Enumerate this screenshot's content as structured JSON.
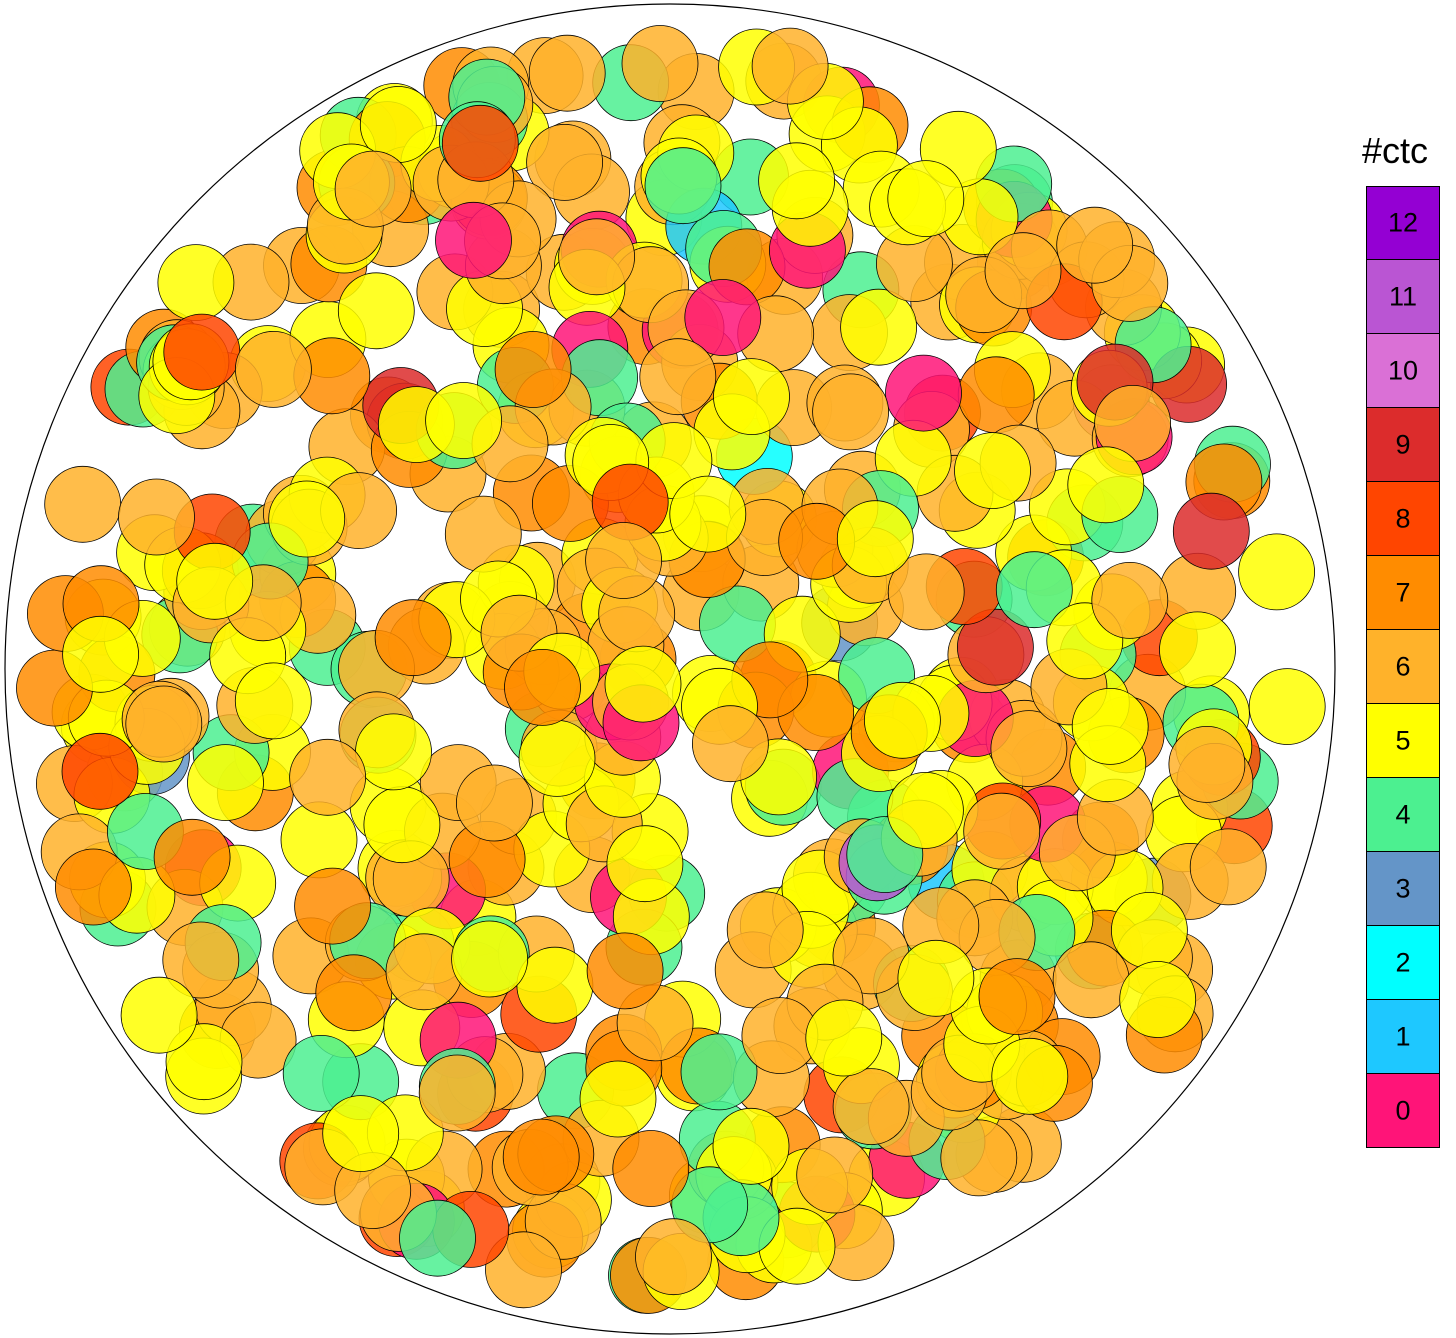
{
  "legend": {
    "title": "#ctc",
    "entries": [
      {
        "label": "12",
        "color": "#9400D3"
      },
      {
        "label": "11",
        "color": "#BA55D3"
      },
      {
        "label": "10",
        "color": "#DA70D6"
      },
      {
        "label": "9",
        "color": "#DC2C2C"
      },
      {
        "label": "8",
        "color": "#FF4500"
      },
      {
        "label": "7",
        "color": "#FF8C00"
      },
      {
        "label": "6",
        "color": "#FFB22A"
      },
      {
        "label": "5",
        "color": "#FFFF00"
      },
      {
        "label": "4",
        "color": "#4CF090"
      },
      {
        "label": "3",
        "color": "#6495C8"
      },
      {
        "label": "2",
        "color": "#00FFFF"
      },
      {
        "label": "1",
        "color": "#1EC8FF"
      },
      {
        "label": "0",
        "color": "#FF1478"
      }
    ]
  },
  "container": {
    "shape": "circle",
    "stroke": "#000000"
  },
  "particle_contact_counts_distribution": {
    "0": 22,
    "1": 2,
    "2": 1,
    "3": 3,
    "4": 70,
    "5": 190,
    "6": 200,
    "7": 75,
    "8": 22,
    "9": 5,
    "10": 1,
    "11": 1,
    "12": 0
  },
  "particle_border_color": "#000000"
}
